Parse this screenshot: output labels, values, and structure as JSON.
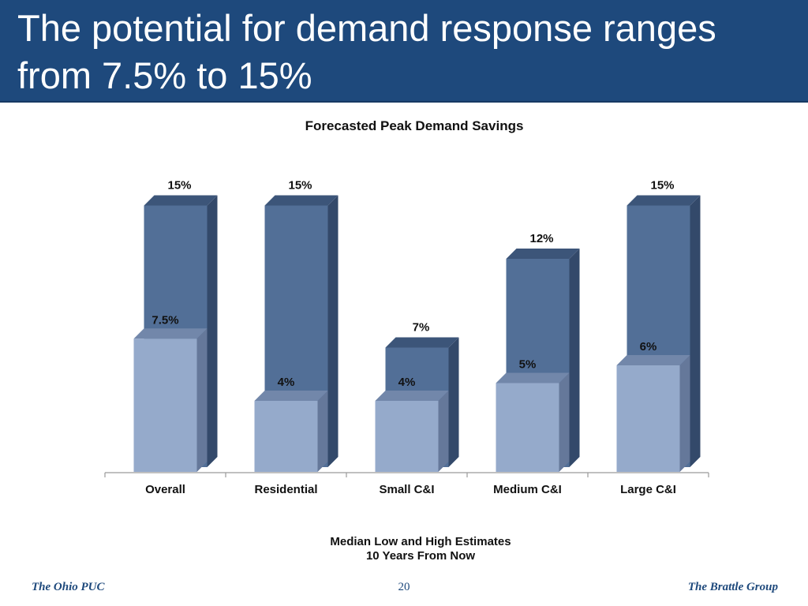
{
  "slide": {
    "title": "The potential for demand response ranges from 7.5% to 15%",
    "footer_left": "The Ohio PUC",
    "footer_page": "20",
    "footer_right": "The Brattle Group"
  },
  "colors": {
    "band": "#1e497c",
    "high_front": "#526f97",
    "high_side": "#33496a",
    "high_top": "#3c5579",
    "low_front": "#95aacb",
    "low_side": "#65789a",
    "low_top": "#7287aa"
  },
  "chart_data": {
    "type": "bar",
    "style": "3d-overlapping-columns",
    "title": "Forecasted Peak Demand Savings",
    "xlabel_lines": [
      "Median Low and High Estimates",
      "10 Years From Now"
    ],
    "categories": [
      "Overall",
      "Residential",
      "Small C&I",
      "Medium C&I",
      "Large C&I"
    ],
    "series": [
      {
        "key": "high",
        "values": [
          15,
          15,
          7,
          12,
          15
        ],
        "labels": [
          "15%",
          "15%",
          "7%",
          "12%",
          "15%"
        ]
      },
      {
        "key": "low",
        "values": [
          7.5,
          4,
          4,
          5,
          6
        ],
        "labels": [
          "7.5%",
          "4%",
          "4%",
          "5%",
          "6%"
        ]
      }
    ],
    "ylim": [
      0,
      15
    ],
    "y_axis_visible": false,
    "grid": false,
    "legend": "none"
  }
}
